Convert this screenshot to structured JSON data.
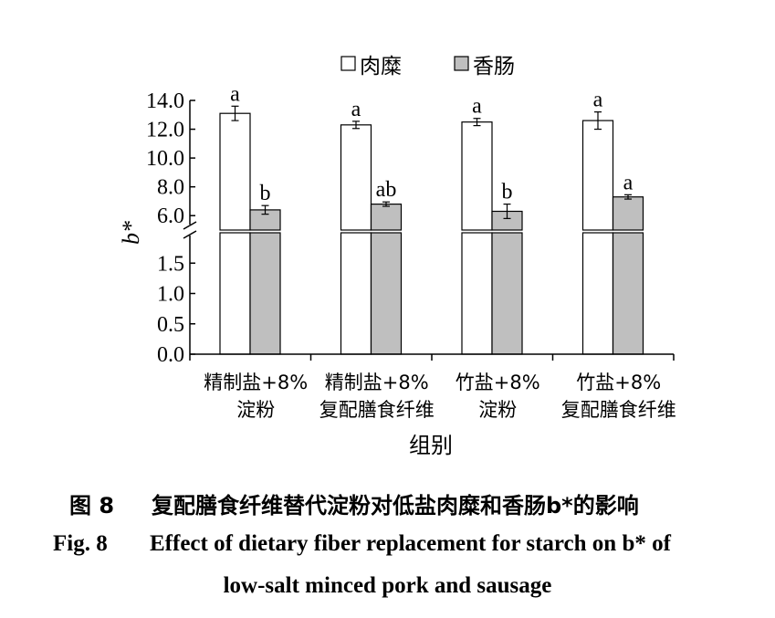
{
  "chart_data": {
    "type": "bar",
    "xlabel": "组别",
    "ylabel": "b*",
    "categories": [
      [
        "精制盐+8%",
        "淀粉"
      ],
      [
        "精制盐+8%",
        "复配膳食纤维"
      ],
      [
        "竹盐+8%",
        "淀粉"
      ],
      [
        "竹盐+8%",
        "复配膳食纤维"
      ]
    ],
    "series": [
      {
        "name": "肉糜",
        "fill": "#ffffff",
        "values": [
          13.1,
          12.3,
          12.5,
          12.6
        ],
        "errors": [
          0.5,
          0.25,
          0.25,
          0.6
        ],
        "labels": [
          "a",
          "a",
          "a",
          "a"
        ]
      },
      {
        "name": "香肠",
        "fill": "#bfbfbf",
        "values": [
          6.4,
          6.8,
          6.3,
          7.3
        ],
        "errors": [
          0.3,
          0.15,
          0.5,
          0.15
        ],
        "labels": [
          "b",
          "ab",
          "b",
          "a"
        ]
      }
    ],
    "axis_break": {
      "lower_range": [
        0,
        2.0
      ],
      "upper_range": [
        5.0,
        14.0
      ]
    },
    "yticks_lower": [
      "0.0",
      "0.5",
      "1.0",
      "1.5"
    ],
    "yticks_upper": [
      "6.0",
      "8.0",
      "10.0",
      "12.0",
      "14.0"
    ],
    "legend_position": "top-center",
    "grid": false
  },
  "caption": {
    "cn_number": "图 8",
    "cn_text": "复配膳食纤维替代淀粉对低盐肉糜和香肠b*的影响",
    "en_number": "Fig. 8",
    "en_line1": "Effect of dietary fiber replacement for starch on b* of",
    "en_line2": "low-salt minced pork and sausage"
  }
}
